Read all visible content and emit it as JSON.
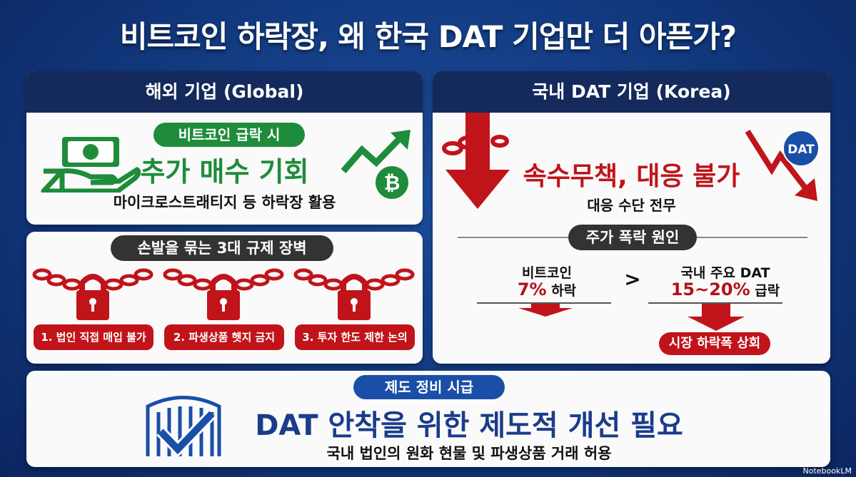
{
  "title": "비트코인 하락장, 왜 한국 DAT 기업만 더 아픈가?",
  "global": {
    "header": "해외 기업 (Global)",
    "badge": "비트코인 급락 시",
    "headline": "추가 매수 기회",
    "sub": "마이크로스트래티지 등 하락장 활용"
  },
  "barriers": {
    "badge": "손발을 묶는 3대 규제 장벽",
    "items": [
      "1. 법인 직접 매입 불가",
      "2. 파생상품 헷지 금지",
      "3. 투자 한도 제한 논의"
    ]
  },
  "korea": {
    "header": "국내 DAT 기업 (Korea)",
    "logo": "DAT",
    "headline": "속수무책, 대응 불가",
    "sub": "대응 수단 전무",
    "cause_badge": "주가 폭락 원인",
    "left_label": "비트코인",
    "left_value": "7%",
    "left_suffix": "하락",
    "compare": ">",
    "right_label": "국내 주요 DAT",
    "right_value": "15~20%",
    "right_suffix": "급락",
    "result": "시장 하락폭 상회"
  },
  "reform": {
    "badge": "제도 정비 시급",
    "headline": "DAT 안착을 위한 제도적 개선 필요",
    "sub": "국내 법인의 원화 현물 및 파생상품 거래 허용"
  },
  "watermark": "NotebookLM",
  "colors": {
    "navy": "#142a5c",
    "red": "#c0141a",
    "green": "#1e8c3a",
    "blue": "#1a4fa8",
    "dark": "#333333"
  }
}
